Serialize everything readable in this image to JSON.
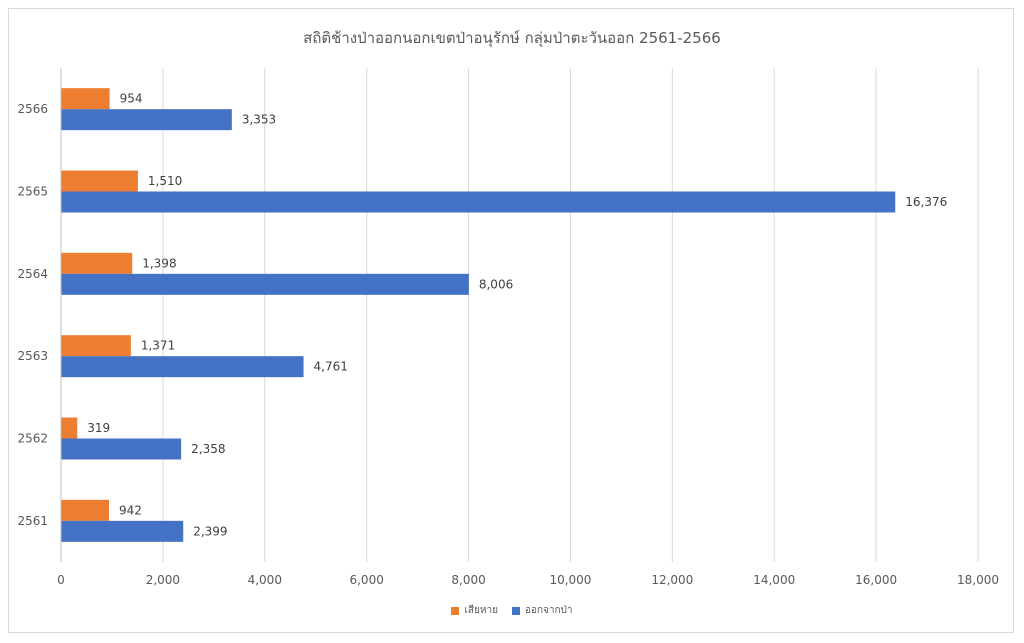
{
  "chart_data": {
    "type": "bar",
    "orientation": "horizontal",
    "title": "สถิติช้างป่าออกนอกเขตป่าอนุรักษ์ กลุ่มป่าตะวันออก 2561-2566",
    "categories": [
      "2561",
      "2562",
      "2563",
      "2564",
      "2565",
      "2566"
    ],
    "series": [
      {
        "name": "เสียหาย",
        "color": "#ed7d31",
        "values": [
          942,
          319,
          1371,
          1398,
          1510,
          954
        ],
        "labels": [
          "942",
          "319",
          "1,371",
          "1,398",
          "1,510",
          "954"
        ]
      },
      {
        "name": "ออกจากป่า",
        "color": "#4472c4",
        "values": [
          2399,
          2358,
          4761,
          8006,
          16376,
          3353
        ],
        "labels": [
          "2,399",
          "2,358",
          "4,761",
          "8,006",
          "16,376",
          "3,353"
        ]
      }
    ],
    "xlim": [
      0,
      18000
    ],
    "xticks": [
      0,
      2000,
      4000,
      6000,
      8000,
      10000,
      12000,
      14000,
      16000,
      18000
    ],
    "xtick_labels": [
      "0",
      "2,000",
      "4,000",
      "6,000",
      "8,000",
      "10,000",
      "12,000",
      "14,000",
      "16,000",
      "18,000"
    ],
    "grid": "vertical",
    "legend": "bottom"
  }
}
